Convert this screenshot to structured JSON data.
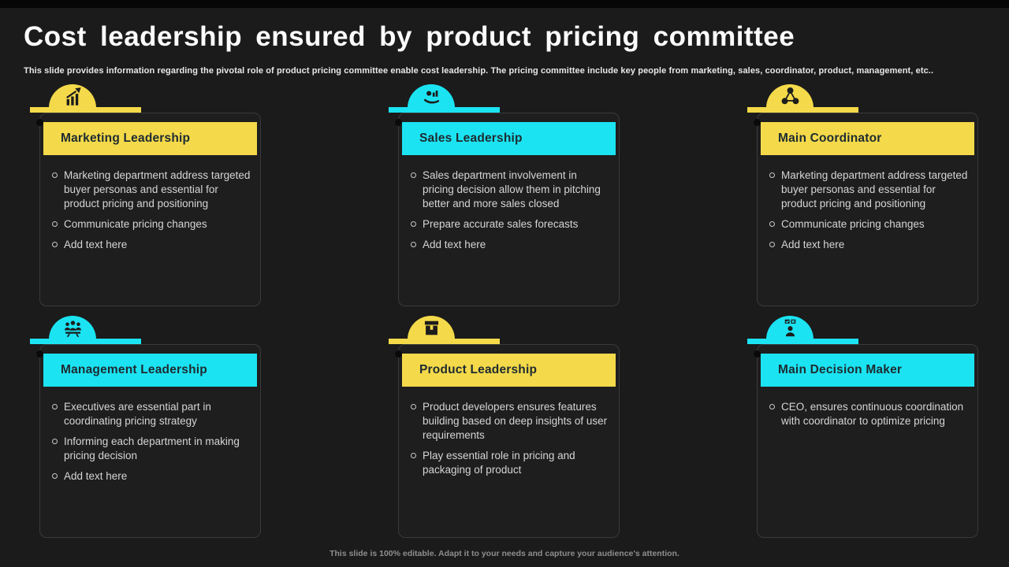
{
  "page": {
    "title": "Cost leadership ensured by product pricing committee",
    "subtitle": "This slide provides information regarding the pivotal role of product pricing committee enable cost leadership. The pricing committee include key people from marketing, sales, coordinator, product, management, etc..",
    "footer": "This slide is 100% editable. Adapt it to your needs and capture your audience's attention."
  },
  "colors": {
    "yellow": "#F4D94A",
    "cyan": "#1BE3F2",
    "header_text": "#1E2B30",
    "background": "#1B1B1B",
    "card_border": "#3A3A3A",
    "body_text": "#D5D5D5"
  },
  "cards": [
    {
      "title": "Marketing Leadership",
      "accent": "yellow",
      "icon": "marketing-growth-chart-icon",
      "bullets": [
        "Marketing department address targeted buyer personas and essential for product pricing and positioning",
        "Communicate pricing changes",
        "Add text here"
      ]
    },
    {
      "title": "Sales Leadership",
      "accent": "cyan",
      "icon": "hand-holding-sales-icon",
      "bullets": [
        "Sales department involvement in pricing decision allow them in pitching better and more sales closed",
        "Prepare accurate sales forecasts",
        "Add text here"
      ]
    },
    {
      "title": "Main Coordinator",
      "accent": "yellow",
      "icon": "network-nodes-icon",
      "bullets": [
        "Marketing department address targeted buyer personas and essential for product pricing and positioning",
        "Communicate pricing changes",
        "Add text here"
      ]
    },
    {
      "title": "Management Leadership",
      "accent": "cyan",
      "icon": "team-meeting-icon",
      "bullets": [
        "Executives are essential part in coordinating pricing strategy",
        "Informing each department in making pricing decision",
        "Add text here"
      ]
    },
    {
      "title": "Product Leadership",
      "accent": "yellow",
      "icon": "product-package-icon",
      "bullets": [
        "Product developers ensures features building based on deep insights of user requirements",
        "Play essential role in pricing and packaging of product"
      ]
    },
    {
      "title": "Main Decision Maker",
      "accent": "cyan",
      "icon": "decision-person-icon",
      "bullets": [
        "CEO, ensures continuous coordination with coordinator to optimize pricing"
      ]
    }
  ]
}
